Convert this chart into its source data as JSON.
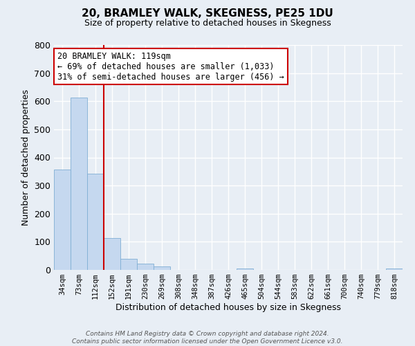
{
  "title": "20, BRAMLEY WALK, SKEGNESS, PE25 1DU",
  "subtitle": "Size of property relative to detached houses in Skegness",
  "xlabel": "Distribution of detached houses by size in Skegness",
  "ylabel": "Number of detached properties",
  "bar_labels": [
    "34sqm",
    "73sqm",
    "112sqm",
    "152sqm",
    "191sqm",
    "230sqm",
    "269sqm",
    "308sqm",
    "348sqm",
    "387sqm",
    "426sqm",
    "465sqm",
    "504sqm",
    "544sqm",
    "583sqm",
    "622sqm",
    "661sqm",
    "700sqm",
    "740sqm",
    "779sqm",
    "818sqm"
  ],
  "bar_values": [
    358,
    612,
    342,
    113,
    40,
    22,
    13,
    0,
    0,
    0,
    0,
    5,
    0,
    0,
    0,
    0,
    0,
    0,
    0,
    0,
    5
  ],
  "bar_color": "#c5d8ef",
  "bar_edgecolor": "#7faed4",
  "property_line_label": "20 BRAMLEY WALK: 119sqm",
  "annotation_line1": "← 69% of detached houses are smaller (1,033)",
  "annotation_line2": "31% of semi-detached houses are larger (456) →",
  "ylim": [
    0,
    800
  ],
  "yticks": [
    0,
    100,
    200,
    300,
    400,
    500,
    600,
    700,
    800
  ],
  "footer1": "Contains HM Land Registry data © Crown copyright and database right 2024.",
  "footer2": "Contains public sector information licensed under the Open Government Licence v3.0.",
  "bg_color": "#e8eef5",
  "grid_color": "#ffffff",
  "annotation_box_edgecolor": "#cc0000",
  "red_line_color": "#cc0000",
  "red_line_x": 2.5
}
